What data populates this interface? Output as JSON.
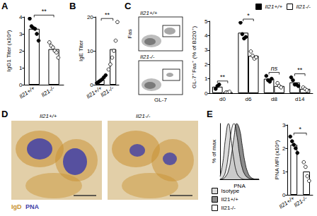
{
  "chart_data": [
    {
      "panel": "A",
      "type": "bar",
      "y_label": "IgG1 Titer (x10⁴)",
      "categories": [
        "Il21+/+",
        "Il21-/-"
      ],
      "values": [
        3.3,
        2.1
      ],
      "points": [
        [
          3.9,
          3.45,
          3.35,
          3.3,
          3.0,
          2.6
        ],
        [
          2.5,
          2.3,
          2.2,
          2.0,
          1.9,
          1.6
        ]
      ],
      "colors": [
        "#000000",
        "#ffffff"
      ],
      "ylim": [
        0,
        4
      ],
      "yticks": [
        0,
        1,
        2,
        3,
        4
      ],
      "annotations": [
        "**"
      ]
    },
    {
      "panel": "B",
      "type": "bar",
      "y_label": "IgE Titer",
      "categories": [
        "Il21+/+",
        "Il21-/-"
      ],
      "values": [
        1.5,
        10.5
      ],
      "points": [
        [
          0.5,
          0.8,
          1.2,
          1.6,
          2.2,
          2.8
        ],
        [
          4.5,
          6,
          8,
          10,
          13,
          18.5
        ]
      ],
      "colors": [
        "#000000",
        "#ffffff"
      ],
      "ylim": [
        0,
        20
      ],
      "yticks": [
        0,
        10,
        20
      ],
      "annotations": [
        "**"
      ]
    },
    {
      "type": "bar",
      "y_label": "GL-7⁺Fas⁺ (% of B220⁺)",
      "categories": [
        "d0",
        "d6",
        "d8",
        "d14"
      ],
      "series": [
        {
          "name": "Il21+/+",
          "color": "#000000",
          "values": [
            0.45,
            4.2,
            1.0,
            0.75
          ],
          "points": [
            [
              0.3,
              0.5,
              0.6
            ],
            [
              4.9,
              4.1,
              3.8,
              3.9
            ],
            [
              1.2,
              0.9,
              0.8,
              1.0
            ],
            [
              1.1,
              0.9,
              0.6,
              0.6,
              0.5
            ]
          ]
        },
        {
          "name": "Il21-/-",
          "color": "#ffffff",
          "values": [
            0.05,
            2.6,
            0.5,
            0.3
          ],
          "points": [
            [
              0.05,
              0.05,
              0.1
            ],
            [
              2.9,
              2.6,
              2.4,
              2.5
            ],
            [
              0.7,
              0.5,
              0.4
            ],
            [
              0.4,
              0.3,
              0.2
            ]
          ]
        }
      ],
      "ylim": [
        0,
        5
      ],
      "yticks": [
        0,
        1,
        2,
        3,
        4,
        5
      ],
      "legend": "top",
      "annotations": [
        "**",
        "*",
        "ns",
        "**"
      ]
    },
    {
      "panel": "E",
      "type": "line",
      "x_label": "PNA",
      "y_label": "% of max",
      "x": [
        0,
        1,
        2,
        3,
        4,
        5,
        6,
        7,
        8,
        9,
        10,
        11,
        12,
        13,
        14
      ],
      "series": [
        {
          "name": "Isotype",
          "color": "#dcdcdc",
          "values": [
            5,
            30,
            75,
            100,
            70,
            35,
            12,
            4,
            1,
            0,
            0,
            0,
            0,
            0,
            0
          ]
        },
        {
          "name": "Il21+/+",
          "color": "#8c8c8c",
          "values": [
            0,
            1,
            5,
            15,
            40,
            75,
            100,
            90,
            60,
            30,
            12,
            4,
            1,
            0,
            0
          ]
        },
        {
          "name": "Il21-/-",
          "color": "#ffffff",
          "values": [
            0,
            3,
            15,
            45,
            85,
            100,
            80,
            45,
            20,
            8,
            3,
            1,
            0,
            0,
            0
          ]
        }
      ],
      "xlim": [
        0,
        14
      ],
      "ylim": [
        0,
        100
      ],
      "tick_labels": false,
      "legend": "bottom"
    },
    {
      "type": "bar",
      "y_label": "PNA MFI (x10⁴)",
      "categories": [
        "Il21+/+",
        "Il21-/-"
      ],
      "values": [
        2.15,
        1.0
      ],
      "points": [
        [
          2.5,
          2.3,
          2.15,
          2.0,
          1.8
        ],
        [
          1.4,
          1.2,
          0.8,
          0.6
        ]
      ],
      "colors": [
        "#000000",
        "#ffffff"
      ],
      "ylim": [
        0,
        3
      ],
      "yticks": [
        0,
        1,
        2,
        3
      ],
      "annotations": [
        "*"
      ]
    }
  ],
  "flow_plots": {
    "panel": "C",
    "x_label": "GL-7",
    "y_label": "Fas",
    "plots": [
      "Il21+/+",
      "Il21-/-"
    ]
  },
  "histology": {
    "panel": "D",
    "images": [
      "Il21+/+",
      "Il21-/-"
    ],
    "stains": [
      {
        "name": "IgD",
        "color": "#c8902f"
      },
      {
        "name": "PNA",
        "color": "#4040a8"
      }
    ]
  }
}
